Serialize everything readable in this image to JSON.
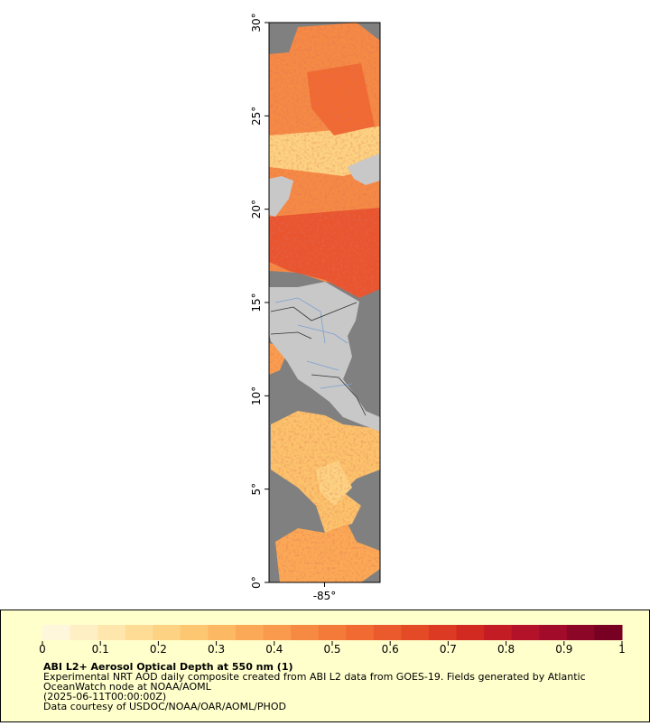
{
  "map": {
    "ylim": [
      0,
      30
    ],
    "yticks": [
      {
        "value": 0,
        "label": "0°"
      },
      {
        "value": 5,
        "label": "5°"
      },
      {
        "value": 10,
        "label": "10°"
      },
      {
        "value": 15,
        "label": "15°"
      },
      {
        "value": 20,
        "label": "20°"
      },
      {
        "value": 25,
        "label": "25°"
      },
      {
        "value": 30,
        "label": "30°"
      }
    ],
    "xlim": [
      -88,
      -82
    ],
    "xticks": [
      {
        "value": -85,
        "label": "-85°"
      }
    ]
  },
  "colorbar": {
    "lim": [
      0,
      1
    ],
    "ticks": [
      0,
      0.1,
      0.2,
      0.3,
      0.4,
      0.5,
      0.6,
      0.7,
      0.8,
      0.9,
      1
    ],
    "colors": [
      "#fff7dc",
      "#ffefc4",
      "#ffe6ac",
      "#fedc96",
      "#fdd282",
      "#fdc670",
      "#fcb862",
      "#fba956",
      "#f99a4c",
      "#f78a42",
      "#f47a3a",
      "#f06a32",
      "#eb5a2c",
      "#e44a26",
      "#dc3a22",
      "#d22a20",
      "#c41c24",
      "#b41228",
      "#a20c2a",
      "#8c0628",
      "#780022"
    ]
  },
  "caption": {
    "title": "ABI L2+ Aerosol Optical Depth at 550 nm (1)",
    "lines": [
      "Experimental NRT AOD daily composite created from ABI L2 data from GOES-19. Fields generated by Atlantic",
      "OceanWatch node at NOAA/AOML",
      "(2025-06-11T00:00:00Z)",
      "Data courtesy of USDOC/NOAA/OAR/AOML/PHOD"
    ]
  }
}
